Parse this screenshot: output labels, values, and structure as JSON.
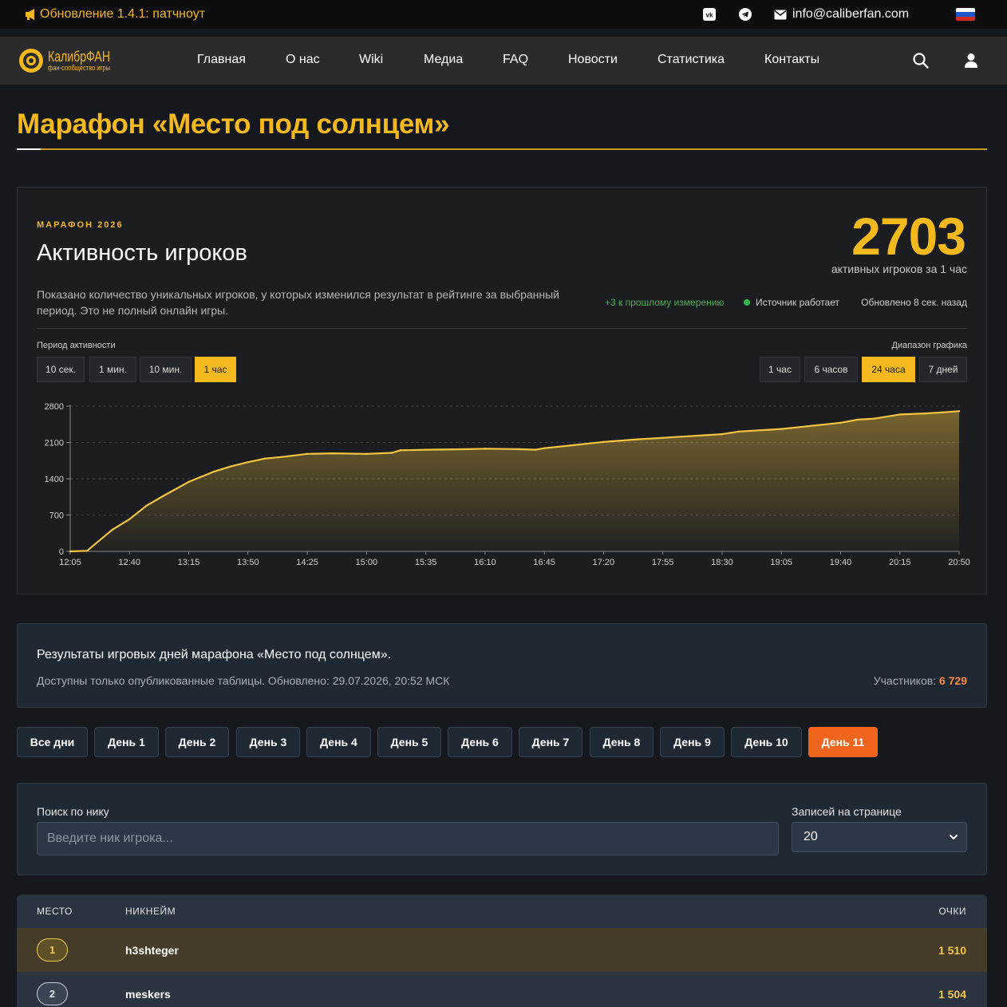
{
  "topbar": {
    "announcement": "Обновление 1.4.1: патчноут",
    "email": "info@caliberfan.com"
  },
  "brand": {
    "name": "КалибрФАН",
    "tagline": "фан-сообщество игры"
  },
  "nav": [
    {
      "label": "Главная"
    },
    {
      "label": "О нас"
    },
    {
      "label": "Wiki"
    },
    {
      "label": "Медиа"
    },
    {
      "label": "FAQ"
    },
    {
      "label": "Новости"
    },
    {
      "label": "Статистика"
    },
    {
      "label": "Контакты"
    }
  ],
  "page": {
    "title": "Марафон «Место под солнцем»"
  },
  "activity": {
    "eyebrow": "МАРАФОН 2026",
    "heading": "Активность игроков",
    "count": "2703",
    "count_caption": "активных игроков за 1 час",
    "description": "Показано количество уникальных игроков, у которых изменился результат в рейтинге за выбранный период. Это не полный онлайн игры.",
    "delta": "+3 к прошлому измерению",
    "source_status": "Источник работает",
    "updated": "Обновлено 8 сек. назад",
    "period_label": "Период активности",
    "range_label": "Диапазон графика",
    "periods": [
      {
        "label": "10 сек.",
        "active": false
      },
      {
        "label": "1 мин.",
        "active": false
      },
      {
        "label": "10 мин.",
        "active": false
      },
      {
        "label": "1 час",
        "active": true
      }
    ],
    "ranges": [
      {
        "label": "1 час",
        "active": false
      },
      {
        "label": "6 часов",
        "active": false
      },
      {
        "label": "24 часа",
        "active": true
      },
      {
        "label": "7 дней",
        "active": false
      }
    ],
    "colors": {
      "line": "#f5c542",
      "accent": "#f5b91d",
      "status_ok": "#2fb94c"
    }
  },
  "chart_data": {
    "type": "area",
    "title": "",
    "xlabel": "",
    "ylabel": "",
    "ylim": [
      0,
      2800
    ],
    "yticks": [
      0,
      700,
      1400,
      2100,
      2800
    ],
    "xticks": [
      "12:05",
      "12:40",
      "13:15",
      "13:50",
      "14:25",
      "15:00",
      "15:35",
      "16:10",
      "16:45",
      "17:20",
      "17:55",
      "18:30",
      "19:05",
      "19:40",
      "20:15",
      "20:50"
    ],
    "grid": true,
    "x": [
      "12:05",
      "12:15",
      "12:20",
      "12:30",
      "12:40",
      "12:50",
      "13:00",
      "13:15",
      "13:30",
      "13:40",
      "13:50",
      "14:00",
      "14:10",
      "14:25",
      "14:40",
      "15:00",
      "15:15",
      "15:20",
      "15:35",
      "16:00",
      "16:10",
      "16:30",
      "16:40",
      "16:45",
      "17:00",
      "17:20",
      "17:40",
      "17:55",
      "18:10",
      "18:30",
      "18:40",
      "19:05",
      "19:20",
      "19:40",
      "19:50",
      "20:00",
      "20:15",
      "20:30",
      "20:40",
      "20:50"
    ],
    "values": [
      0,
      10,
      150,
      420,
      620,
      880,
      1070,
      1340,
      1540,
      1640,
      1720,
      1790,
      1820,
      1880,
      1890,
      1880,
      1900,
      1950,
      1960,
      1970,
      1980,
      1970,
      1960,
      1990,
      2040,
      2110,
      2160,
      2190,
      2220,
      2260,
      2310,
      2360,
      2410,
      2480,
      2540,
      2560,
      2640,
      2660,
      2680,
      2703
    ],
    "series": [
      {
        "values_ref": "values"
      }
    ]
  },
  "results": {
    "title": "Результаты игровых дней марафона «Место под солнцем».",
    "subtitle": "Доступны только опубликованные таблицы. Обновлено: 29.07.2026, 20:52 МСК",
    "participants_label": "Участников:",
    "participants_value": "6 729"
  },
  "days": [
    {
      "label": "Все дни",
      "active": false
    },
    {
      "label": "День 1",
      "active": false
    },
    {
      "label": "День 2",
      "active": false
    },
    {
      "label": "День 3",
      "active": false
    },
    {
      "label": "День 4",
      "active": false
    },
    {
      "label": "День 5",
      "active": false
    },
    {
      "label": "День 6",
      "active": false
    },
    {
      "label": "День 7",
      "active": false
    },
    {
      "label": "День 8",
      "active": false
    },
    {
      "label": "День 9",
      "active": false
    },
    {
      "label": "День 10",
      "active": false
    },
    {
      "label": "День 11",
      "active": true
    }
  ],
  "search": {
    "label": "Поиск по нику",
    "placeholder": "Введите ник игрока...",
    "value": ""
  },
  "per_page": {
    "label": "Записей на странице",
    "value": "20"
  },
  "table": {
    "columns": [
      "МЕСТО",
      "НИКНЕЙМ",
      "ОЧКИ"
    ],
    "rows": [
      {
        "rank": "1",
        "nick": "h3shteger",
        "points": "1 510"
      },
      {
        "rank": "2",
        "nick": "meskers",
        "points": "1 504"
      }
    ]
  }
}
